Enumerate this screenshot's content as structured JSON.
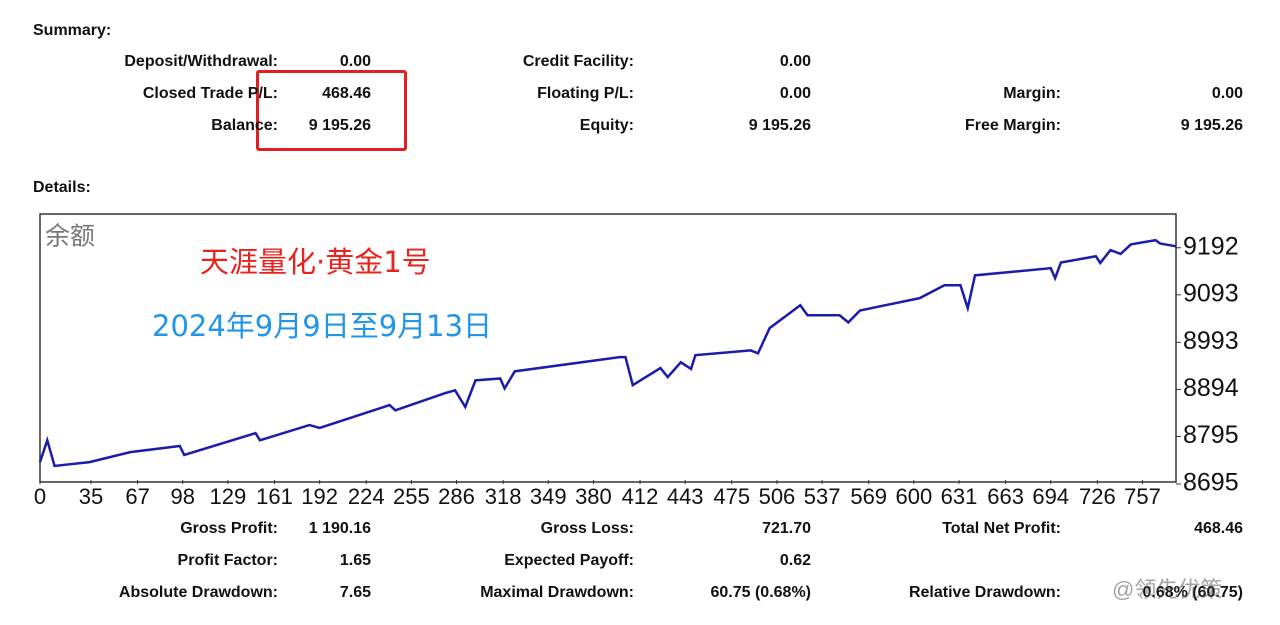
{
  "summary": {
    "title": "Summary:",
    "rows": [
      [
        {
          "label": "Deposit/Withdrawal:",
          "value": "0.00"
        },
        {
          "label": "Credit Facility:",
          "value": "0.00"
        }
      ],
      [
        {
          "label": "Closed Trade P/L:",
          "value": "468.46"
        },
        {
          "label": "Floating P/L:",
          "value": "0.00"
        },
        {
          "label": "Margin:",
          "value": "0.00"
        }
      ],
      [
        {
          "label": "Balance:",
          "value": "9 195.26"
        },
        {
          "label": "Equity:",
          "value": "9 195.26"
        },
        {
          "label": "Free Margin:",
          "value": "9 195.26"
        }
      ]
    ]
  },
  "details": {
    "title": "Details:",
    "rows": [
      [
        {
          "label": "Gross Profit:",
          "value": "1 190.16"
        },
        {
          "label": "Gross Loss:",
          "value": "721.70"
        },
        {
          "label": "Total Net Profit:",
          "value": "468.46"
        }
      ],
      [
        {
          "label": "Profit Factor:",
          "value": "1.65"
        },
        {
          "label": "Expected Payoff:",
          "value": "0.62"
        }
      ],
      [
        {
          "label": "Absolute Drawdown:",
          "value": "7.65"
        },
        {
          "label": "Maximal Drawdown:",
          "value": "60.75 (0.68%)"
        },
        {
          "label": "Relative Drawdown:",
          "value": "0.68% (60.75)"
        }
      ]
    ]
  },
  "watermark": "@领先优策",
  "chart_data": {
    "type": "line",
    "axis_label": "余额",
    "title": "天涯量化·黄金1号",
    "subtitle": "2024年9月9日至9月13日",
    "color": "#1c1caa",
    "x": [
      0,
      5,
      10,
      34,
      62,
      96,
      99,
      148,
      151,
      185,
      192,
      240,
      244,
      278,
      285,
      292,
      299,
      316,
      319,
      326,
      398,
      402,
      407,
      426,
      431,
      440,
      447,
      450,
      488,
      493,
      501,
      522,
      527,
      549,
      555,
      563,
      604,
      621,
      632,
      637,
      642,
      694,
      697,
      701,
      725,
      728,
      735,
      742,
      749,
      766,
      769,
      780
    ],
    "values": [
      8741,
      8787,
      8733,
      8741,
      8762,
      8775,
      8756,
      8802,
      8787,
      8819,
      8813,
      8861,
      8850,
      8886,
      8892,
      8857,
      8913,
      8917,
      8896,
      8932,
      8962,
      8962,
      8903,
      8939,
      8920,
      8951,
      8937,
      8966,
      8976,
      8970,
      9023,
      9071,
      9050,
      9050,
      9035,
      9060,
      9086,
      9113,
      9113,
      9065,
      9134,
      9149,
      9128,
      9161,
      9174,
      9160,
      9187,
      9179,
      9199,
      9208,
      9201,
      9195
    ],
    "xlim": [
      0,
      780
    ],
    "xticks": [
      0,
      35,
      67,
      98,
      129,
      161,
      192,
      224,
      255,
      286,
      318,
      349,
      380,
      412,
      443,
      475,
      506,
      537,
      569,
      600,
      631,
      663,
      694,
      726,
      757
    ],
    "ylim": [
      8695,
      9263
    ],
    "yticks": [
      8695,
      8795,
      8894,
      8993,
      9093,
      9192
    ]
  }
}
